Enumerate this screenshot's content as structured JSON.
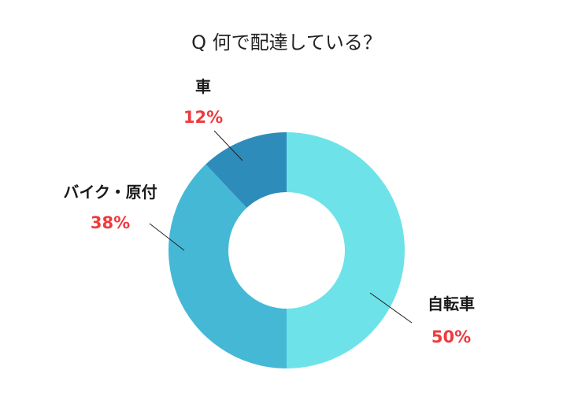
{
  "title": "Q 何で配達している？",
  "chart_data": {
    "type": "pie",
    "variant": "donut",
    "title": "Q 何で配達している？",
    "start_angle": "12 o'clock",
    "direction": "clockwise",
    "legend": "none",
    "slices": [
      {
        "label": "自転車",
        "value": 50,
        "value_label": "50%",
        "color": "#6de3e9"
      },
      {
        "label": "バイク・原付",
        "value": 38,
        "value_label": "38%",
        "color": "#45b8d6"
      },
      {
        "label": "車",
        "value": 12,
        "value_label": "12%",
        "color": "#2e8cbb"
      }
    ],
    "label_color": "#1a1a1a",
    "value_label_color": "#f0393c"
  }
}
